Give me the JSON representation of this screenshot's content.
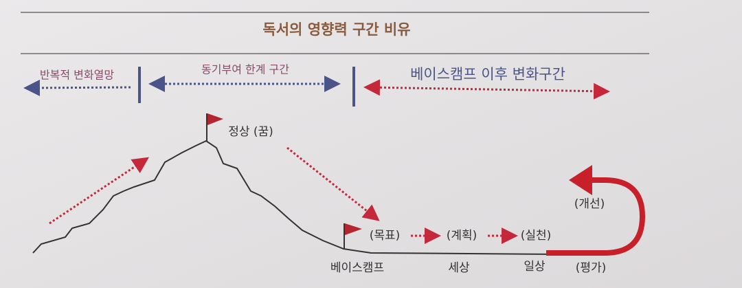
{
  "title": "독서의 영향력 구간 비유",
  "zones": [
    "반복적 변화열망",
    "동기부여 한계 구간",
    "베이스캠프 이후 변화구간"
  ],
  "labels": {
    "peak": "정상 (꿈)",
    "goal": "(목표)",
    "plan": "(계획)",
    "action": "(실천)",
    "basecamp": "베이스캠프",
    "world": "세상",
    "daily": "일상",
    "improve": "(개선)",
    "evaluate": "(평가)"
  }
}
